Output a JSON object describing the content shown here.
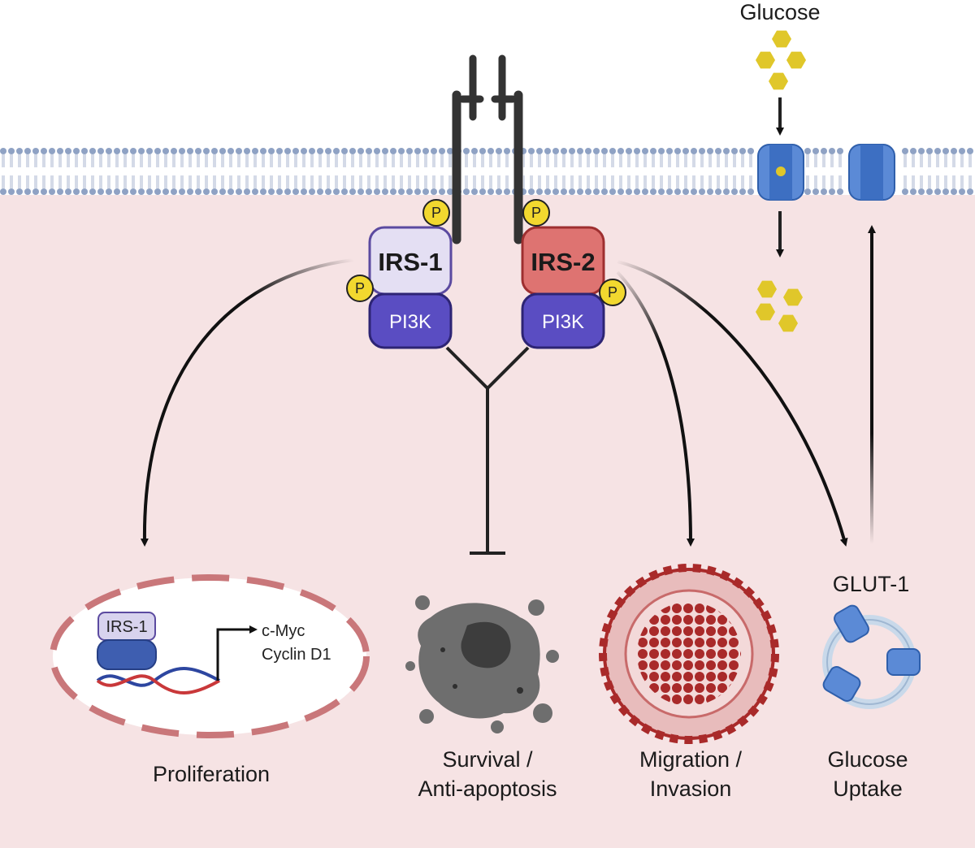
{
  "labels": {
    "glucose_top": "Glucose",
    "irs1": "IRS-1",
    "irs2": "IRS-2",
    "pi3k_left": "PI3K",
    "pi3k_right": "PI3K",
    "phospho": "P",
    "glut1": "GLUT-1",
    "nucleus_irs1": "IRS-1",
    "gene1": "c-Myc",
    "gene2": "Cyclin D1",
    "proliferation": "Proliferation",
    "survival_1": "Survival /",
    "survival_2": "Anti-apoptosis",
    "migration_1": "Migration /",
    "migration_2": "Invasion",
    "uptake_1": "Glucose",
    "uptake_2": "Uptake"
  },
  "colors": {
    "cytoplasm": "#f6e3e4",
    "membrane_head": "#8fa2c4",
    "irs1_fill": "#e4dff3",
    "irs1_stroke": "#5b4aa0",
    "irs2_fill": "#de7371",
    "irs2_stroke": "#9e2f30",
    "pi3k_fill": "#5a4dc2",
    "phospho_fill": "#f2d82f",
    "glucose": "#e0c72a",
    "transporter": "#5b8ad6",
    "nucleus_border": "#c9777a",
    "tumor": "#a92a2a",
    "cell_gray": "#707070"
  }
}
